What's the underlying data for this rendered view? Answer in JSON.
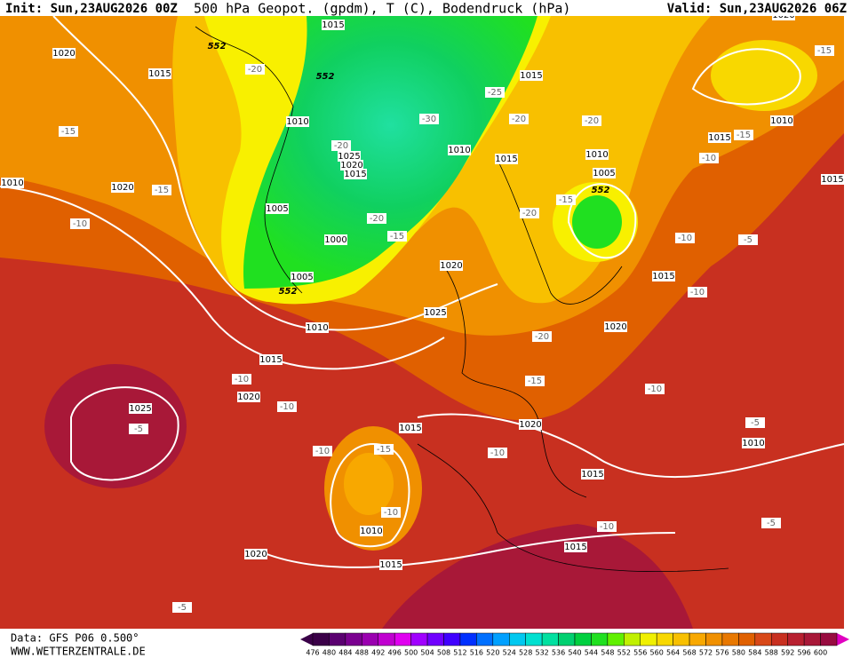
{
  "header": {
    "init": "Init: Sun,23AUG2026 00Z",
    "title": "500 hPa Geopot. (gpdm), T (C), Bodendruck (hPa)",
    "valid": "Valid: Sun,23AUG2026 06Z"
  },
  "footer": {
    "data": "Data: GFS P06 0.500°",
    "source": "WWW.WETTERZENTRALE.DE"
  },
  "colorbar": {
    "ticks": [
      476,
      480,
      484,
      488,
      492,
      496,
      500,
      504,
      508,
      512,
      516,
      520,
      524,
      528,
      532,
      536,
      540,
      544,
      548,
      552,
      556,
      560,
      564,
      568,
      572,
      576,
      580,
      584,
      588,
      592,
      596,
      600
    ],
    "colors": [
      "#3a0048",
      "#5a0070",
      "#7a0090",
      "#9a00b0",
      "#c000d0",
      "#e000f0",
      "#a000ff",
      "#7000ff",
      "#4000ff",
      "#0030ff",
      "#0070ff",
      "#00a0ff",
      "#00c8f0",
      "#00e0d0",
      "#00e0a0",
      "#00d070",
      "#00d040",
      "#20e020",
      "#60f000",
      "#c0f000",
      "#f0f000",
      "#f8d800",
      "#f8c000",
      "#f8a800",
      "#f09000",
      "#e87800",
      "#e06000",
      "#d84818",
      "#c83020",
      "#b82030",
      "#a81838",
      "#980c40"
    ]
  },
  "isobar_labels": [
    1015,
    1020,
    1015,
    1015,
    1010,
    1025,
    1020,
    1015,
    1010,
    1015,
    1010,
    1005,
    1010,
    1015,
    1010,
    1020,
    1005,
    1000,
    1005,
    1020,
    1015,
    1015,
    1025,
    1010,
    1020,
    1015,
    1020,
    1025,
    1020,
    1015,
    1010,
    1015,
    1010,
    1015,
    1015,
    1020,
    1020
  ],
  "temperature_labels": [
    -15,
    -20,
    -25,
    -30,
    -20,
    -20,
    -15,
    -15,
    -10,
    -15,
    -20,
    -20,
    -15,
    -20,
    -15,
    -10,
    -10,
    -5,
    -10,
    -20,
    -15,
    -10,
    -10,
    -10,
    -5,
    -5,
    -15,
    -10,
    -10,
    -10,
    -10,
    -5,
    -5
  ],
  "geopotential_labels": [
    552,
    552,
    552,
    552
  ]
}
